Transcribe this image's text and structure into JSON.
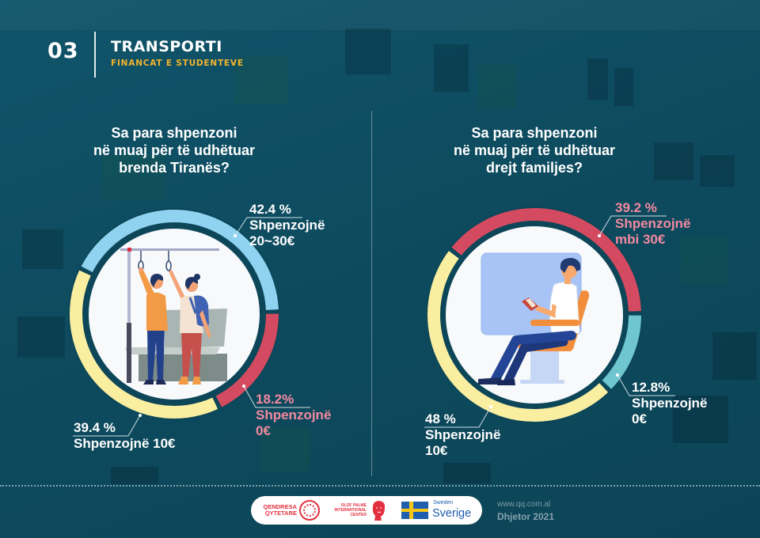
{
  "header": {
    "number": "03",
    "title": "TRANSPORTI",
    "subtitle": "FINANCAT E STUDENTEVE"
  },
  "colors": {
    "background": "#0e4b5f",
    "accent_yellow": "#f5b52c",
    "label_pink": "#f28aa0"
  },
  "chart_data": [
    {
      "type": "pie",
      "donut": true,
      "title_lines": [
        "Sa para shpenzoni",
        "në muaj për të udhëtuar",
        "brenda Tiranës?"
      ],
      "segments": [
        {
          "value": 42.4,
          "pct_label": "42.4 %",
          "desc_lines": [
            "Shpenzojnë",
            "20~30€"
          ],
          "color": "#8fd3f1",
          "label_color": "#ffffff"
        },
        {
          "value": 18.2,
          "pct_label": "18.2%",
          "desc_lines": [
            "Shpenzojnë",
            "0€"
          ],
          "color": "#d44a60",
          "label_color": "#f28aa0"
        },
        {
          "value": 39.4,
          "pct_label": "39.4 %",
          "desc_lines": [
            "Shpenzojnë 10€"
          ],
          "color": "#faeea0",
          "label_color": "#ffffff"
        }
      ]
    },
    {
      "type": "pie",
      "donut": true,
      "title_lines": [
        "Sa para shpenzoni",
        "në muaj për të udhëtuar",
        "drejt familjes?"
      ],
      "segments": [
        {
          "value": 39.2,
          "pct_label": "39.2 %",
          "desc_lines": [
            "Shpenzojnë",
            "mbi 30€"
          ],
          "color": "#d44a60",
          "label_color": "#f28aa0"
        },
        {
          "value": 12.8,
          "pct_label": "12.8%",
          "desc_lines": [
            "Shpenzojnë",
            "0€"
          ],
          "color": "#6fc6cf",
          "label_color": "#ffffff"
        },
        {
          "value": 48,
          "pct_label": "48 %",
          "desc_lines": [
            "Shpenzojnë",
            "10€"
          ],
          "color": "#faeea0",
          "label_color": "#ffffff"
        }
      ]
    }
  ],
  "footer": {
    "logos": {
      "qendresa_line1": "QENDRESA",
      "qendresa_line2": "QYTETARE",
      "olof_line1": "OLOF PALME",
      "olof_line2": "INTERNATIONAL",
      "olof_line3": "CENTER",
      "sweden": "Sweden",
      "sverige": "Sverige"
    },
    "website": "www.qq.com.al",
    "date": "Dhjetor 2021"
  }
}
